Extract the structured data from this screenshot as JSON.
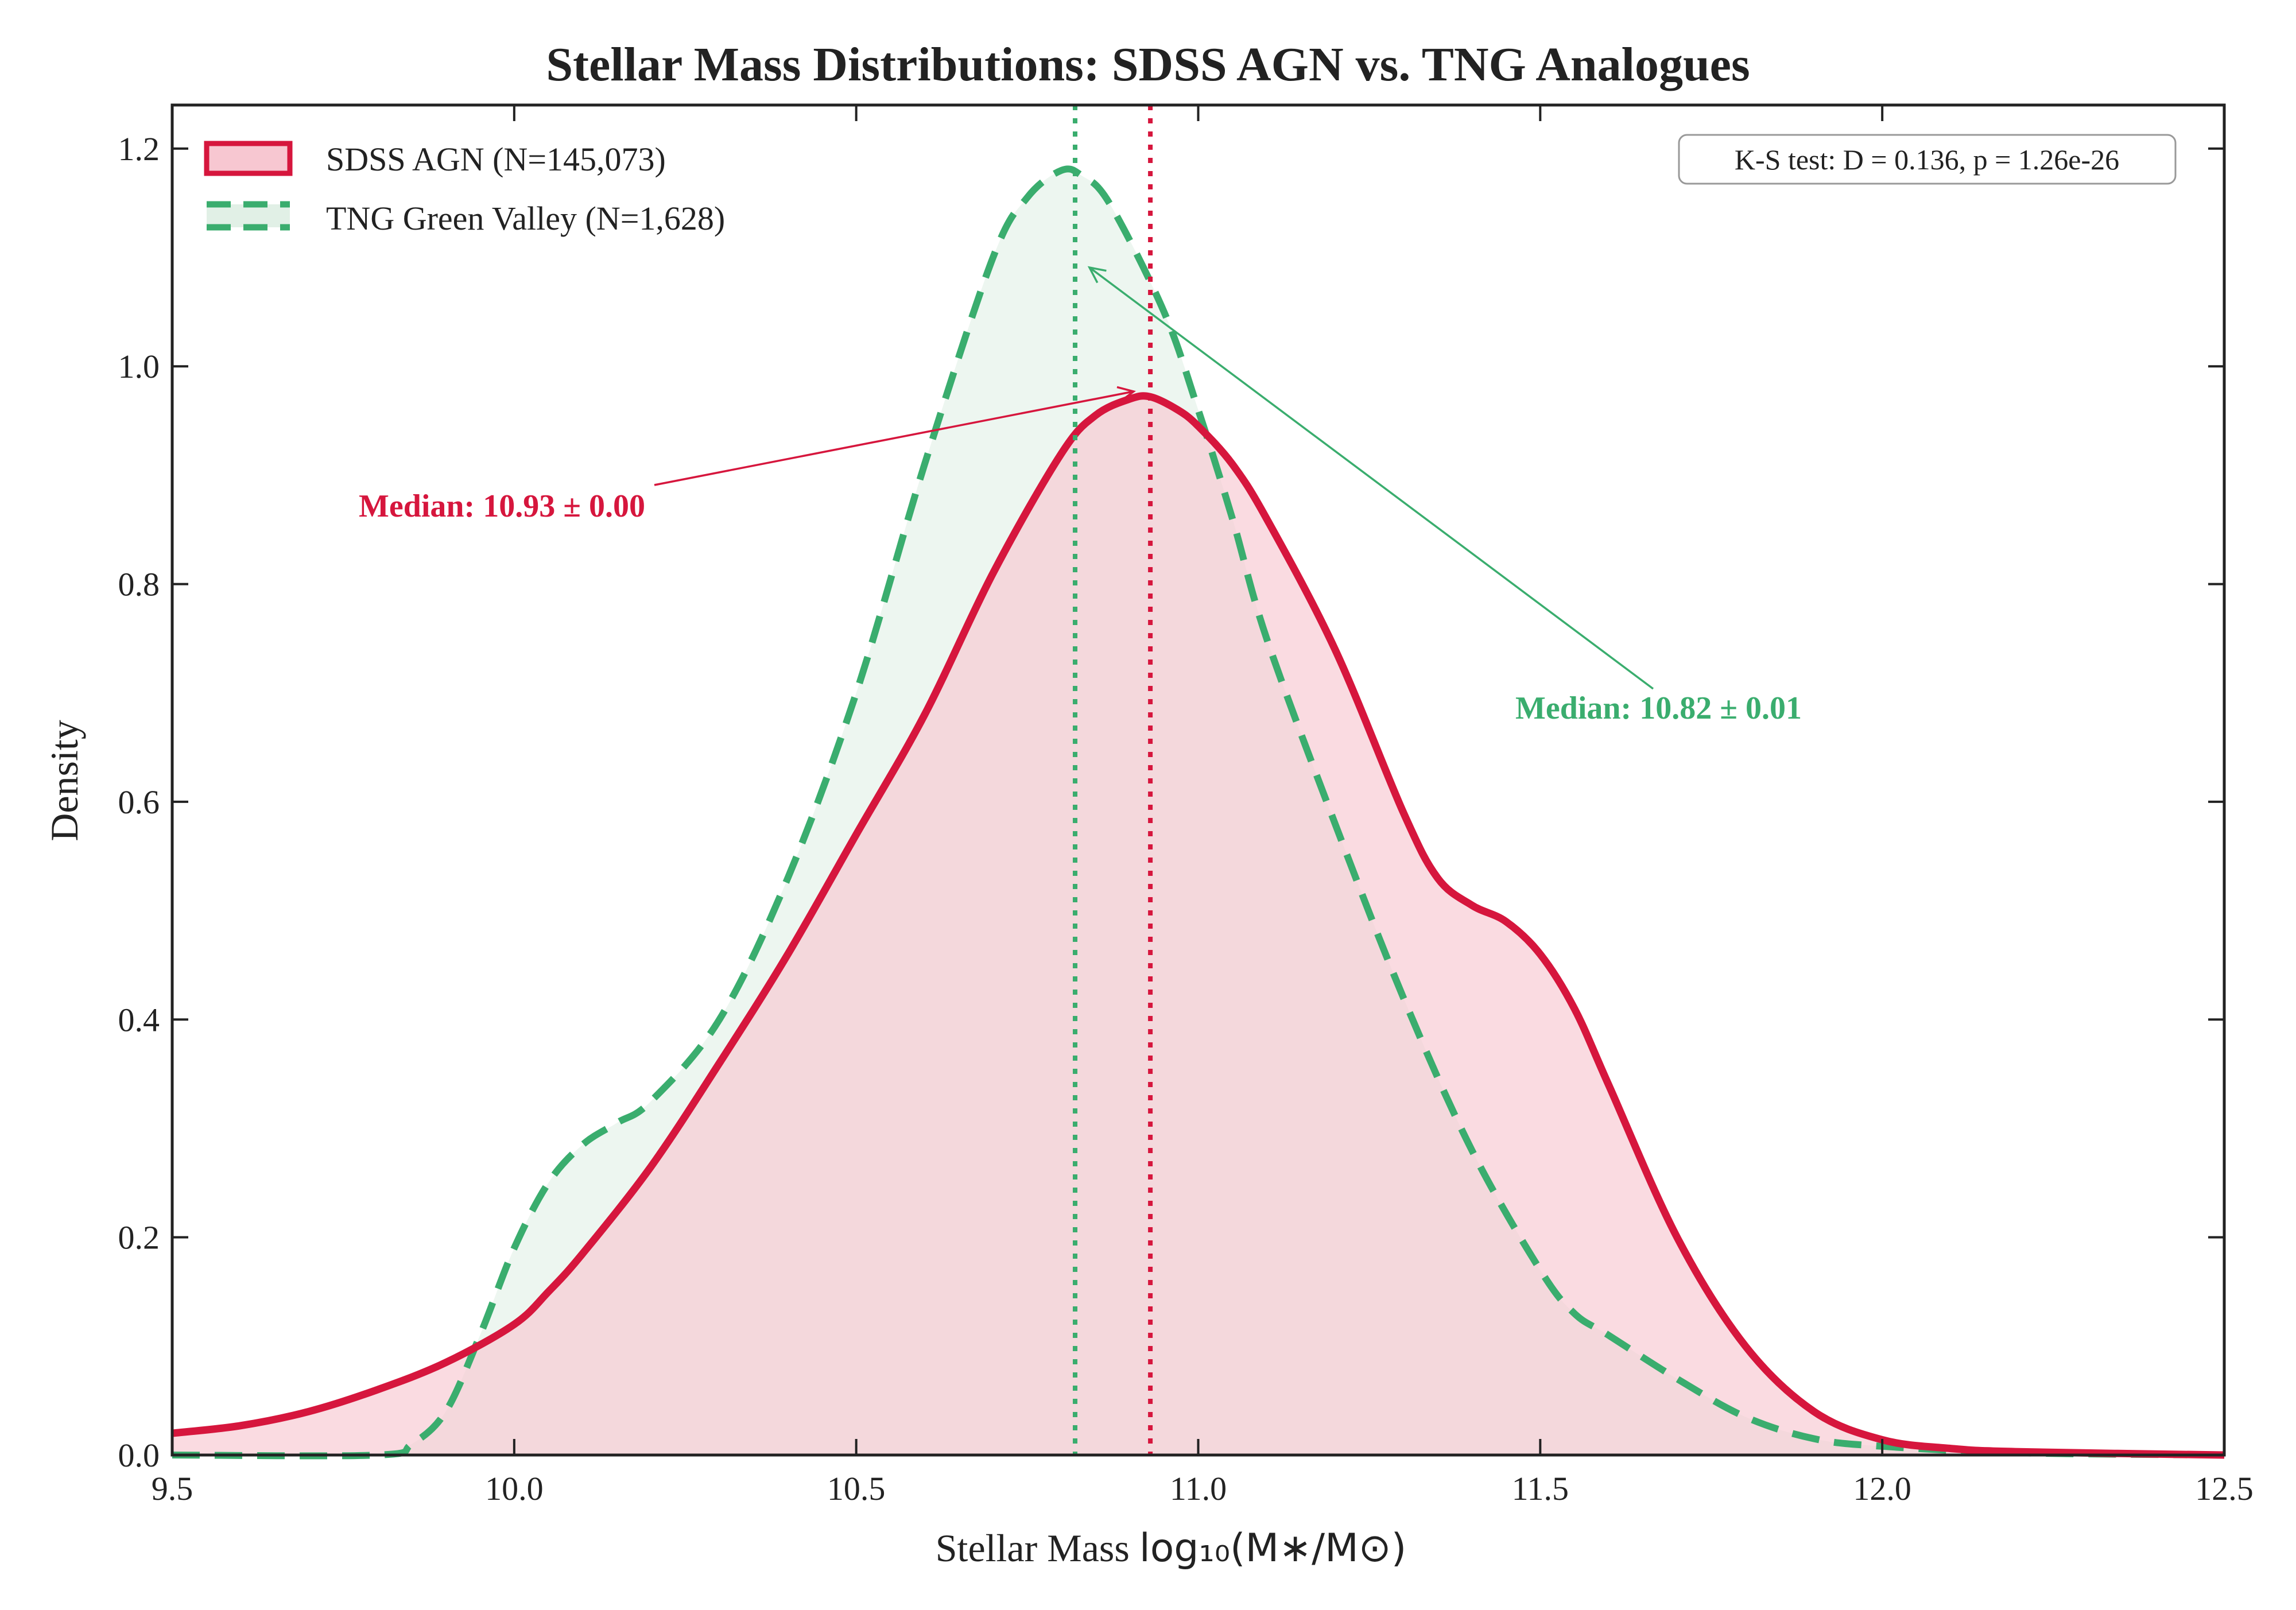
{
  "chart_data": {
    "type": "area",
    "title": "Stellar Mass Distributions: SDSS AGN vs. TNG Analogues",
    "xlabel_prefix": "Stellar Mass ",
    "xlabel_math": "log₁₀(M∗/M⊙)",
    "ylabel": "Density",
    "xlim": [
      9.5,
      12.5
    ],
    "ylim": [
      0.0,
      1.24
    ],
    "xticks": [
      9.5,
      10.0,
      10.5,
      11.0,
      11.5,
      12.0,
      12.5
    ],
    "xtick_labels": [
      "9.5",
      "10.0",
      "10.5",
      "11.0",
      "11.5",
      "12.0",
      "12.5"
    ],
    "yticks": [
      0.0,
      0.2,
      0.4,
      0.6,
      0.8,
      1.0,
      1.2
    ],
    "ytick_labels": [
      "0.0",
      "0.2",
      "0.4",
      "0.6",
      "0.8",
      "1.0",
      "1.2"
    ],
    "grid": false,
    "legend_position": "top-left",
    "series": [
      {
        "name": "SDSS AGN (N=145,073)",
        "line_style": "solid",
        "color": "#d6163d",
        "fill": "#f7c7d1",
        "median": 10.93,
        "x": [
          9.5,
          9.6,
          9.7,
          9.8,
          9.9,
          10.0,
          10.05,
          10.1,
          10.2,
          10.3,
          10.4,
          10.5,
          10.6,
          10.7,
          10.8,
          10.85,
          10.9,
          10.93,
          10.97,
          11.0,
          11.05,
          11.1,
          11.2,
          11.3,
          11.35,
          11.4,
          11.45,
          11.5,
          11.55,
          11.6,
          11.7,
          11.8,
          11.9,
          12.0,
          12.1,
          12.2,
          12.5
        ],
        "y": [
          0.02,
          0.027,
          0.04,
          0.06,
          0.085,
          0.12,
          0.15,
          0.185,
          0.265,
          0.36,
          0.46,
          0.57,
          0.68,
          0.81,
          0.92,
          0.955,
          0.97,
          0.972,
          0.96,
          0.945,
          0.91,
          0.86,
          0.74,
          0.59,
          0.53,
          0.505,
          0.49,
          0.46,
          0.41,
          0.34,
          0.2,
          0.1,
          0.04,
          0.014,
          0.006,
          0.003,
          0.0
        ]
      },
      {
        "name": "TNG Green Valley (N=1,628)",
        "line_style": "dashed",
        "color": "#3aad6e",
        "fill": "#e1f0e6",
        "median": 10.82,
        "x": [
          9.5,
          9.8,
          9.85,
          9.9,
          9.95,
          10.0,
          10.05,
          10.1,
          10.15,
          10.2,
          10.3,
          10.4,
          10.5,
          10.6,
          10.7,
          10.75,
          10.8,
          10.83,
          10.87,
          10.95,
          11.0,
          11.05,
          11.1,
          11.2,
          11.3,
          11.4,
          11.5,
          11.55,
          11.6,
          11.7,
          11.8,
          11.9,
          12.0,
          12.2,
          12.5
        ],
        "y": [
          0.0,
          0.0,
          0.01,
          0.04,
          0.11,
          0.19,
          0.25,
          0.285,
          0.305,
          0.325,
          0.4,
          0.53,
          0.7,
          0.91,
          1.1,
          1.155,
          1.18,
          1.175,
          1.15,
          1.05,
          0.96,
          0.86,
          0.75,
          0.58,
          0.42,
          0.28,
          0.17,
          0.13,
          0.11,
          0.07,
          0.035,
          0.015,
          0.008,
          0.002,
          0.0
        ]
      }
    ],
    "annotations": {
      "ks_test": "K-S test: D = 0.136, p = 1.26e-26",
      "median_agn": "Median: 10.93 ± 0.00",
      "median_tng": "Median: 10.82 ± 0.01"
    }
  }
}
